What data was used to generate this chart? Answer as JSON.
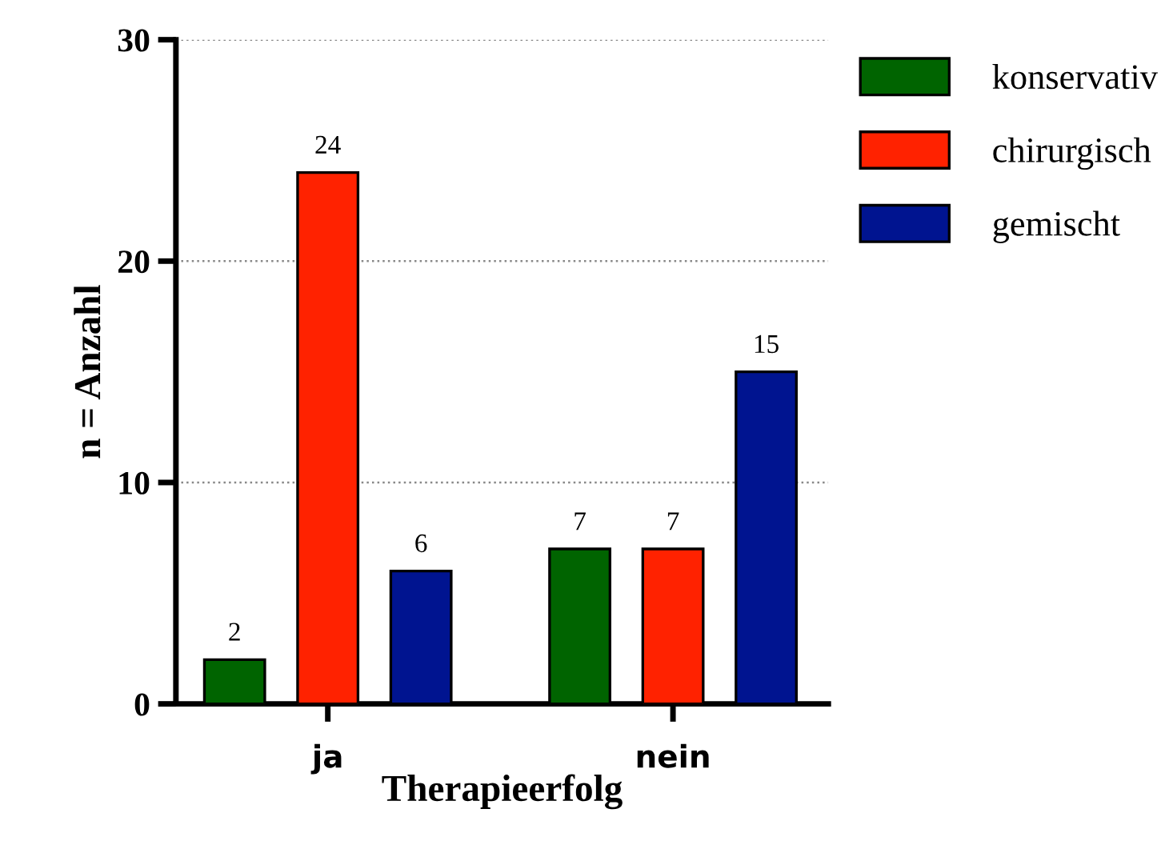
{
  "chart_data": {
    "type": "bar",
    "xlabel": "Therapieerfolg",
    "ylabel": "n = Anzahl",
    "categories": [
      "ja",
      "nein"
    ],
    "series": [
      {
        "name": "konservativ",
        "color": "#006400",
        "values": [
          2,
          7
        ]
      },
      {
        "name": "chirurgisch",
        "color": "#ff2200",
        "values": [
          24,
          7
        ]
      },
      {
        "name": "gemischt",
        "color": "#001490",
        "values": [
          6,
          15
        ]
      }
    ],
    "ylim": [
      0,
      30
    ],
    "yticks": [
      0,
      10,
      20,
      30
    ],
    "grid": "y",
    "legend": "top right",
    "data_labels": true
  }
}
